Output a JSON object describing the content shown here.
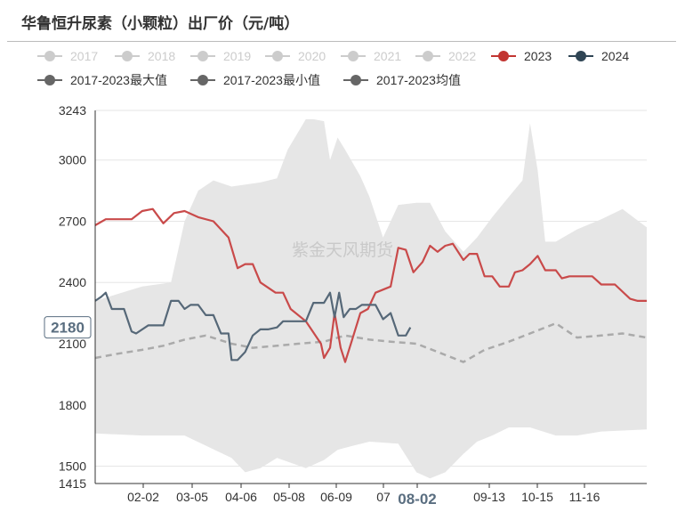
{
  "title": "华鲁恒升尿素（小颗粒）出厂价（元/吨）",
  "watermark": "紫金天风期货",
  "colors": {
    "band": "#e6e6e6",
    "series_2023": "#c94a4a",
    "series_2024": "#566878",
    "mean": "#aaaaaa",
    "axis": "#333333",
    "grid": "#e6e6e6",
    "legend_inactive": "#cccccc",
    "legend_dark": "#666666",
    "legend_2023": "#c23531",
    "legend_2024": "#2f4554",
    "tooltip_border": "#5a6e80"
  },
  "legend": {
    "row1": [
      "2017",
      "2018",
      "2019",
      "2020",
      "2021",
      "2022",
      "2023",
      "2024"
    ],
    "row2": [
      "2017-2023最大值",
      "2017-2023最小值",
      "2017-2023均值"
    ]
  },
  "chart_data": {
    "type": "line",
    "x_tick_labels": [
      "02-02",
      "03-05",
      "04-06",
      "05-08",
      "06-09",
      "07",
      "08-02",
      "09-13",
      "10-15",
      "11-16"
    ],
    "x_highlight": "08-02",
    "y_tick_labels": [
      "3243",
      "3000",
      "2700",
      "2400",
      "2100",
      "1800",
      "1500",
      "1415"
    ],
    "ylim": [
      1415,
      3243
    ],
    "y_highlight": "2180",
    "grid": true,
    "series": [
      {
        "name": "2017-2023最大值",
        "x": [
          "01-01",
          "02-01",
          "02-20",
          "03-01",
          "03-10",
          "03-20",
          "04-01",
          "04-20",
          "05-01",
          "05-08",
          "05-20",
          "05-25",
          "06-01",
          "06-05",
          "06-10",
          "06-15",
          "06-25",
          "07-01",
          "07-10",
          "07-20",
          "08-01",
          "08-10",
          "08-20",
          "09-01",
          "09-10",
          "09-20",
          "10-01",
          "10-10",
          "10-15",
          "10-20",
          "10-25",
          "11-01",
          "11-15",
          "12-01",
          "12-15",
          "12-31"
        ],
        "values": [
          2310,
          2380,
          2400,
          2700,
          2850,
          2900,
          2870,
          2890,
          2910,
          3050,
          3200,
          3200,
          3190,
          3000,
          3110,
          3050,
          2920,
          2820,
          2620,
          2780,
          2790,
          2790,
          2650,
          2550,
          2620,
          2720,
          2820,
          2900,
          3180,
          2950,
          2600,
          2600,
          2660,
          2710,
          2760,
          2670
        ]
      },
      {
        "name": "2017-2023最小值",
        "x": [
          "01-01",
          "02-01",
          "03-01",
          "04-01",
          "04-10",
          "04-20",
          "05-01",
          "05-20",
          "06-01",
          "06-10",
          "06-20",
          "07-01",
          "07-20",
          "08-01",
          "08-10",
          "08-20",
          "09-01",
          "09-10",
          "09-20",
          "10-01",
          "10-15",
          "11-01",
          "11-15",
          "12-01",
          "12-31"
        ],
        "values": [
          1660,
          1650,
          1650,
          1540,
          1470,
          1490,
          1540,
          1490,
          1530,
          1580,
          1600,
          1620,
          1610,
          1470,
          1440,
          1470,
          1560,
          1620,
          1650,
          1690,
          1690,
          1650,
          1650,
          1670,
          1680
        ]
      },
      {
        "name": "2017-2023均值",
        "x": [
          "01-01",
          "01-15",
          "02-01",
          "02-15",
          "03-01",
          "03-15",
          "04-01",
          "04-15",
          "05-01",
          "05-15",
          "06-01",
          "06-15",
          "07-01",
          "07-15",
          "08-01",
          "08-15",
          "09-01",
          "09-15",
          "10-01",
          "10-15",
          "11-01",
          "11-15",
          "12-01",
          "12-15",
          "12-31"
        ],
        "values": [
          2030,
          2050,
          2070,
          2090,
          2120,
          2140,
          2100,
          2080,
          2090,
          2100,
          2110,
          2140,
          2120,
          2110,
          2100,
          2060,
          2010,
          2070,
          2110,
          2150,
          2200,
          2130,
          2140,
          2150,
          2130
        ]
      },
      {
        "name": "2023",
        "x": [
          "01-01",
          "01-08",
          "01-15",
          "01-25",
          "02-01",
          "02-08",
          "02-15",
          "02-22",
          "03-01",
          "03-10",
          "03-20",
          "03-30",
          "04-05",
          "04-10",
          "04-15",
          "04-20",
          "04-30",
          "05-05",
          "05-10",
          "05-20",
          "05-30",
          "06-01",
          "06-05",
          "06-08",
          "06-12",
          "06-15",
          "06-20",
          "06-25",
          "06-30",
          "07-05",
          "07-15",
          "07-20",
          "07-25",
          "07-30",
          "08-05",
          "08-10",
          "08-15",
          "08-20",
          "08-25",
          "09-01",
          "09-05",
          "09-10",
          "09-15",
          "09-20",
          "09-25",
          "10-01",
          "10-05",
          "10-10",
          "10-15",
          "10-20",
          "10-25",
          "11-01",
          "11-05",
          "11-10",
          "11-15",
          "11-20",
          "11-25",
          "12-01",
          "12-10",
          "12-20",
          "12-25",
          "12-31"
        ],
        "values": [
          2680,
          2710,
          2710,
          2710,
          2750,
          2760,
          2690,
          2740,
          2750,
          2720,
          2700,
          2620,
          2470,
          2490,
          2490,
          2400,
          2350,
          2350,
          2270,
          2210,
          2100,
          2030,
          2080,
          2250,
          2080,
          2010,
          2130,
          2250,
          2270,
          2350,
          2380,
          2570,
          2560,
          2450,
          2500,
          2580,
          2550,
          2580,
          2590,
          2510,
          2540,
          2540,
          2430,
          2430,
          2380,
          2380,
          2450,
          2460,
          2490,
          2530,
          2460,
          2460,
          2420,
          2430,
          2430,
          2430,
          2430,
          2390,
          2390,
          2320,
          2310,
          2310
        ]
      },
      {
        "name": "2024",
        "x": [
          "01-01",
          "01-05",
          "01-08",
          "01-12",
          "01-20",
          "01-25",
          "01-28",
          "02-05",
          "02-10",
          "02-15",
          "02-20",
          "02-25",
          "03-01",
          "03-05",
          "03-10",
          "03-15",
          "03-20",
          "03-25",
          "03-30",
          "04-01",
          "04-05",
          "04-10",
          "04-15",
          "04-20",
          "04-25",
          "05-01",
          "05-05",
          "05-10",
          "05-15",
          "05-20",
          "05-25",
          "06-01",
          "06-05",
          "06-08",
          "06-11",
          "06-14",
          "06-18",
          "06-22",
          "06-26",
          "07-01",
          "07-05",
          "07-10",
          "07-15",
          "07-20",
          "07-25",
          "07-28"
        ],
        "values": [
          2310,
          2330,
          2350,
          2270,
          2270,
          2160,
          2150,
          2190,
          2190,
          2190,
          2310,
          2310,
          2270,
          2290,
          2290,
          2240,
          2240,
          2150,
          2150,
          2020,
          2020,
          2060,
          2140,
          2170,
          2170,
          2180,
          2210,
          2210,
          2210,
          2210,
          2300,
          2300,
          2350,
          2230,
          2350,
          2230,
          2270,
          2270,
          2290,
          2290,
          2290,
          2220,
          2250,
          2140,
          2140,
          2180
        ]
      }
    ]
  }
}
